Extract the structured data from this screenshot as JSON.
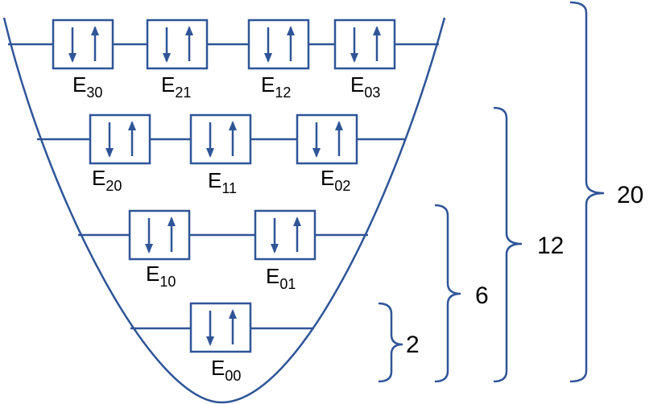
{
  "colors": {
    "line": "#2F5597",
    "text": "#000000",
    "background": "#FFFFFF"
  },
  "levels": [
    {
      "states": [
        {
          "base": "E",
          "sub": "00"
        }
      ]
    },
    {
      "states": [
        {
          "base": "E",
          "sub": "10"
        },
        {
          "base": "E",
          "sub": "01"
        }
      ]
    },
    {
      "states": [
        {
          "base": "E",
          "sub": "20"
        },
        {
          "base": "E",
          "sub": "11"
        },
        {
          "base": "E",
          "sub": "02"
        }
      ]
    },
    {
      "states": [
        {
          "base": "E",
          "sub": "30"
        },
        {
          "base": "E",
          "sub": "21"
        },
        {
          "base": "E",
          "sub": "12"
        },
        {
          "base": "E",
          "sub": "03"
        }
      ]
    }
  ],
  "brace_labels": [
    "2",
    "6",
    "12",
    "20"
  ]
}
